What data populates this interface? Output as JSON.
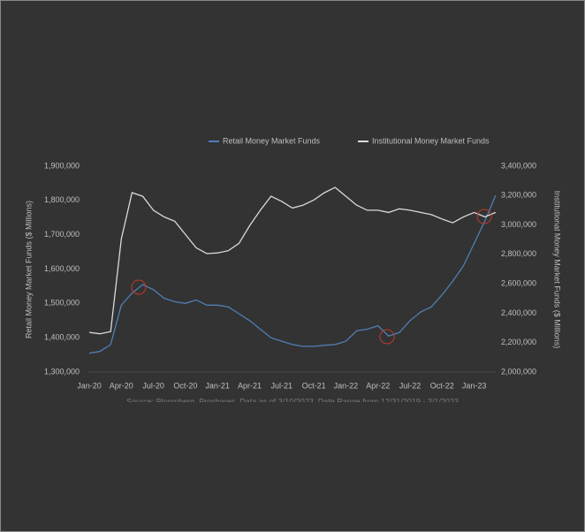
{
  "chart_data": {
    "type": "line",
    "source": "Source: Bloomberg, Proshares. Data as of 3/10/2023. Date Range from 12/31/2019 - 3/1/2023",
    "ylabel": "Retail Money Market Funds ($ Millions)",
    "y2label": "Institutional Money Market Funds ($ Millions)",
    "categories": [
      "Jan-20",
      null,
      null,
      "Apr-20",
      null,
      null,
      "Jul-20",
      null,
      null,
      "Oct-20",
      null,
      null,
      "Jan-21",
      null,
      null,
      "Apr-21",
      null,
      null,
      "Jul-21",
      null,
      null,
      "Oct-21",
      null,
      null,
      "Jan-22",
      null,
      null,
      "Apr-22",
      null,
      null,
      "Jul-22",
      null,
      null,
      "Oct-22",
      null,
      null,
      "Jan-23",
      null,
      null
    ],
    "series": [
      {
        "name": "Retail Money Market Funds",
        "color": "#4f7fb5",
        "axis": "y",
        "values": [
          1355000,
          1360000,
          1380000,
          1495000,
          1530000,
          1555000,
          1540000,
          1515000,
          1505000,
          1500000,
          1510000,
          1495000,
          1495000,
          1490000,
          1470000,
          1450000,
          1425000,
          1400000,
          1390000,
          1380000,
          1375000,
          1375000,
          1378000,
          1380000,
          1390000,
          1420000,
          1425000,
          1435000,
          1405000,
          1415000,
          1450000,
          1475000,
          1490000,
          1525000,
          1565000,
          1610000,
          1675000,
          1740000,
          1815000
        ]
      },
      {
        "name": "Institutional Money Market Funds",
        "color": "#d9d9d9",
        "axis": "y2",
        "values": [
          2270000,
          2260000,
          2275000,
          2905000,
          3220000,
          3195000,
          3100000,
          3055000,
          3025000,
          2935000,
          2845000,
          2805000,
          2810000,
          2825000,
          2875000,
          2995000,
          3100000,
          3195000,
          3160000,
          3115000,
          3135000,
          3170000,
          3220000,
          3255000,
          3195000,
          3135000,
          3100000,
          3100000,
          3085000,
          3110000,
          3100000,
          3085000,
          3070000,
          3040000,
          3015000,
          3055000,
          3085000,
          3055000,
          3085000
        ]
      }
    ],
    "ylim": [
      1300000,
      1900000
    ],
    "yticks": [
      {
        "value": 1300000,
        "label": "1,300,000"
      },
      {
        "value": 1400000,
        "label": "1,400,000"
      },
      {
        "value": 1500000,
        "label": "1,500,000"
      },
      {
        "value": 1600000,
        "label": "1,600,000"
      },
      {
        "value": 1700000,
        "label": "1,700,000"
      },
      {
        "value": 1800000,
        "label": "1,800,000"
      },
      {
        "value": 1900000,
        "label": "1,900,000"
      }
    ],
    "y2lim": [
      2000000,
      3400000
    ],
    "y2ticks": [
      {
        "value": 2000000,
        "label": "2,000,000"
      },
      {
        "value": 2200000,
        "label": "2,200,000"
      },
      {
        "value": 2400000,
        "label": "2,400,000"
      },
      {
        "value": 2600000,
        "label": "2,600,000"
      },
      {
        "value": 2800000,
        "label": "2,800,000"
      },
      {
        "value": 3000000,
        "label": "3,000,000"
      },
      {
        "value": 3200000,
        "label": "3,200,000"
      },
      {
        "value": 3400000,
        "label": "3,400,000"
      }
    ],
    "grid": false,
    "legend": "top"
  }
}
